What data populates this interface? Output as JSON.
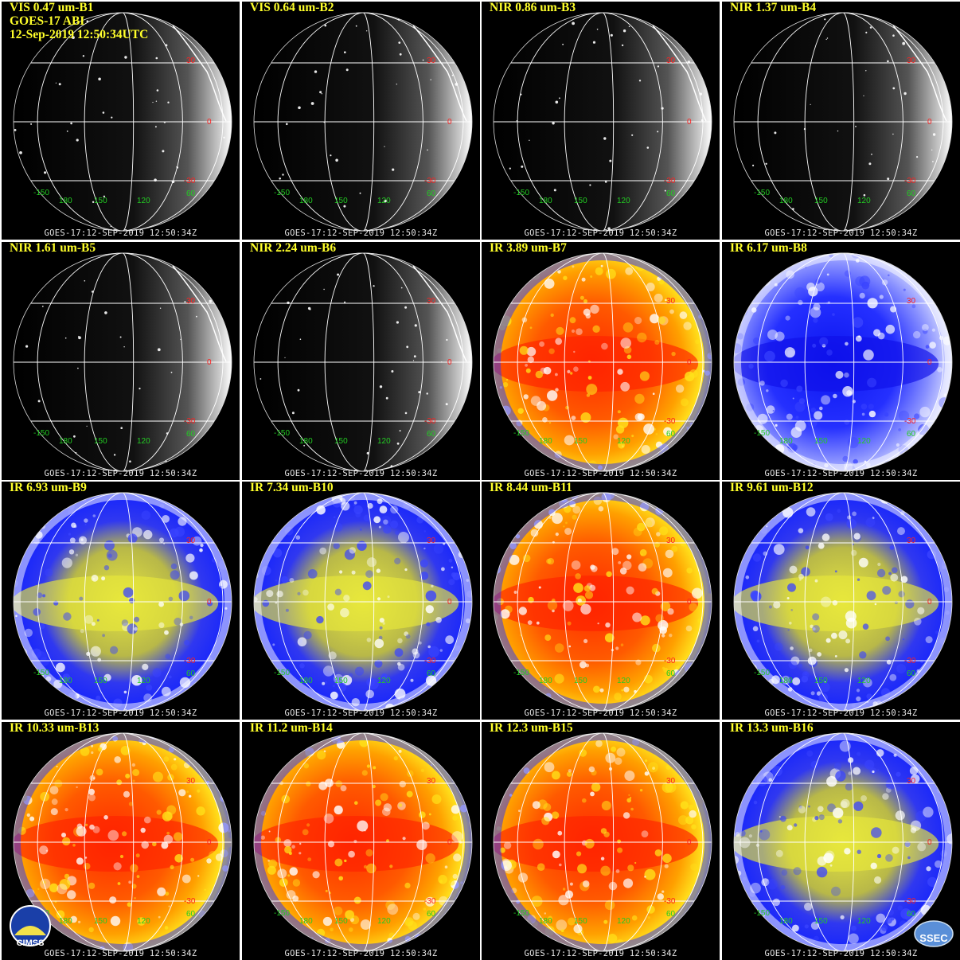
{
  "header": {
    "lines": [
      "VIS 0.47 um-B1",
      "GOES-17 ABI",
      "12-Sep-2019 12:50:34UTC"
    ]
  },
  "footer_text": "GOES-17:12-SEP-2019  12:50:34Z",
  "panels": [
    {
      "label": "VIS 0.47 um-B1",
      "palette": "gray",
      "brightness": "dark"
    },
    {
      "label": "VIS 0.64 um-B2",
      "palette": "gray",
      "brightness": "dark"
    },
    {
      "label": "NIR 0.86 um-B3",
      "palette": "gray",
      "brightness": "dark"
    },
    {
      "label": "NIR 1.37 um-B4",
      "palette": "gray",
      "brightness": "dark"
    },
    {
      "label": "NIR 1.61 um-B5",
      "palette": "gray",
      "brightness": "dark"
    },
    {
      "label": "NIR 2.24 um-B6",
      "palette": "gray",
      "brightness": "dark"
    },
    {
      "label": "IR 3.89 um-B7",
      "palette": "warm",
      "brightness": "full"
    },
    {
      "label": "IR 6.17 um-B8",
      "palette": "wv-blue",
      "brightness": "full"
    },
    {
      "label": "IR 6.93 um-B9",
      "palette": "wv",
      "brightness": "full"
    },
    {
      "label": "IR 7.34 um-B10",
      "palette": "wv",
      "brightness": "full"
    },
    {
      "label": "IR 8.44 um-B11",
      "palette": "warm",
      "brightness": "full"
    },
    {
      "label": "IR 9.61 um-B12",
      "palette": "wv",
      "brightness": "full"
    },
    {
      "label": "IR 10.33 um-B13",
      "palette": "warm",
      "brightness": "full"
    },
    {
      "label": "IR 11.2 um-B14",
      "palette": "warm",
      "brightness": "full"
    },
    {
      "label": "IR 12.3 um-B15",
      "palette": "warm",
      "brightness": "full"
    },
    {
      "label": "IR 13.3 um-B16",
      "palette": "wv",
      "brightness": "full"
    }
  ],
  "grid_labels": {
    "lat": [
      "30",
      "0",
      "-30"
    ],
    "lon": [
      "-150",
      "180",
      "150",
      "120",
      "60"
    ],
    "lat_color": "#ff2020",
    "lon_color": "#22cc22"
  },
  "logos": {
    "left": "CIMSS",
    "right": "SSEC"
  },
  "colors": {
    "title": "#ffff2a",
    "panel_bg": "#000000",
    "gridline": "#ffffff"
  }
}
